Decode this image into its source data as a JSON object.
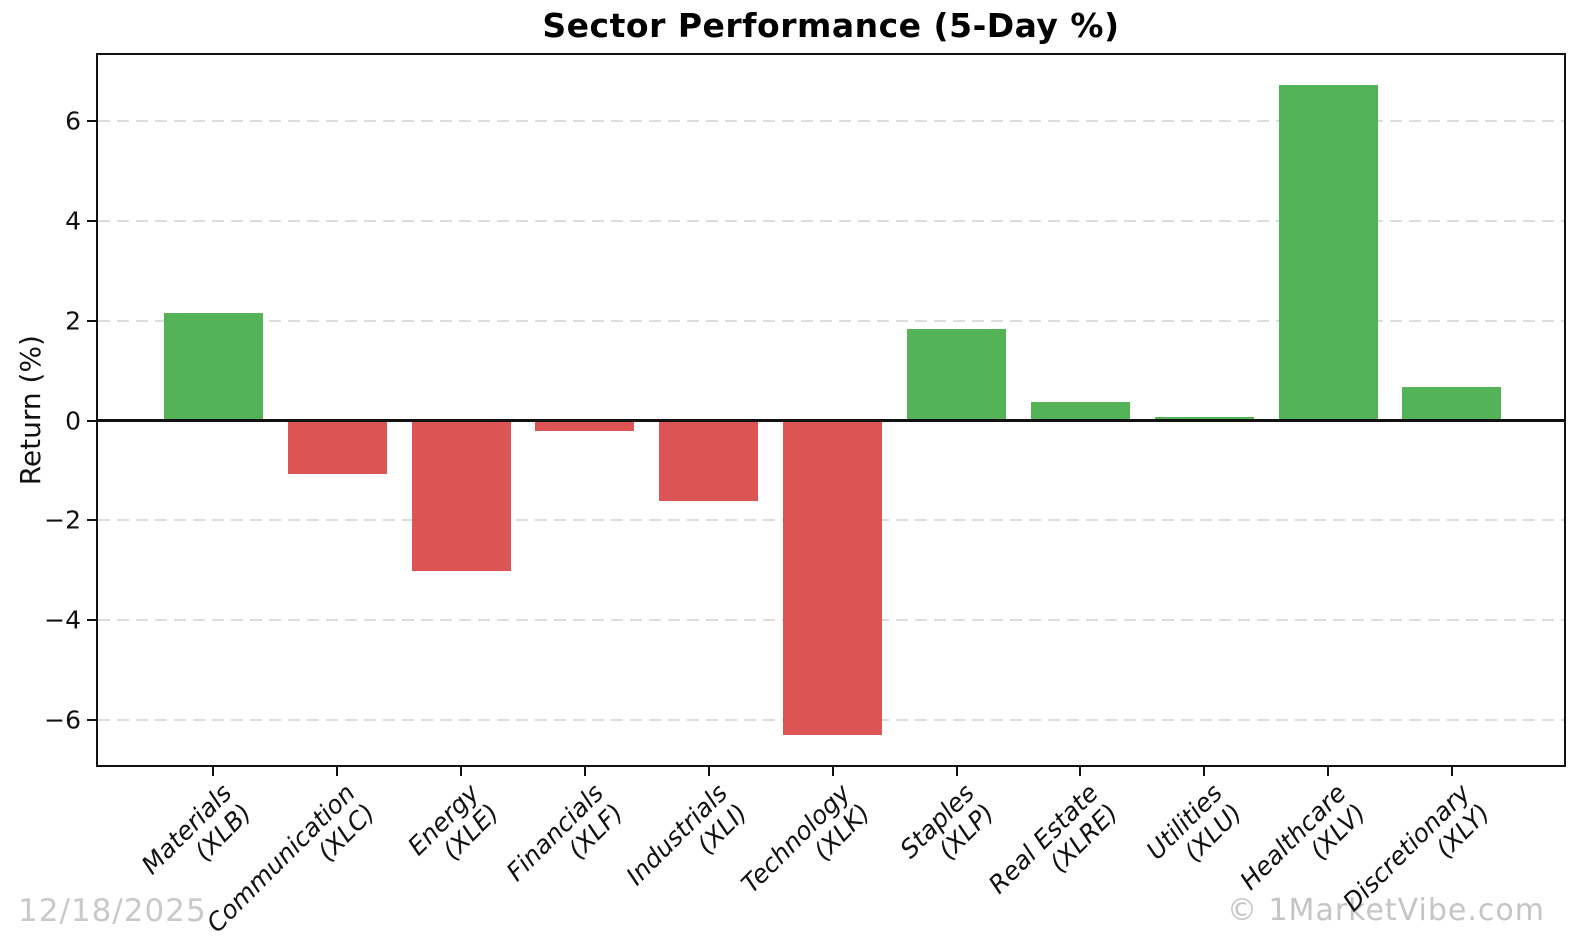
{
  "page": {
    "date_stamp": "12/18/2025",
    "watermark": "© 1MarketVibe.com"
  },
  "chart_data": {
    "type": "bar",
    "title": "Sector Performance (5-Day %)",
    "xlabel": "",
    "ylabel": "Return (%)",
    "ylim": [
      -6.93,
      7.35
    ],
    "grid": "horizontal-dashed",
    "zero_line": true,
    "legend": "none",
    "categories": [
      "Materials",
      "Communication",
      "Energy",
      "Financials",
      "Industrials",
      "Technology",
      "Staples",
      "Real Estate",
      "Utilities",
      "Healthcare",
      "Discretionary"
    ],
    "tickers": [
      "(XLB)",
      "(XLC)",
      "(XLE)",
      "(XLF)",
      "(XLI)",
      "(XLK)",
      "(XLP)",
      "(XLRE)",
      "(XLU)",
      "(XLV)",
      "(XLY)"
    ],
    "values": [
      2.16,
      -1.07,
      -3.02,
      -0.21,
      -1.62,
      -6.29,
      1.83,
      0.37,
      0.08,
      6.72,
      0.67
    ],
    "yticks": [
      6,
      4,
      2,
      0,
      -2,
      -4,
      -6
    ],
    "colors": {
      "positive": "#54b357",
      "negative": "#dc5454",
      "axis": "#111111",
      "gridline": "#dddddd",
      "stamp_gray": "#c9c9c9"
    }
  }
}
